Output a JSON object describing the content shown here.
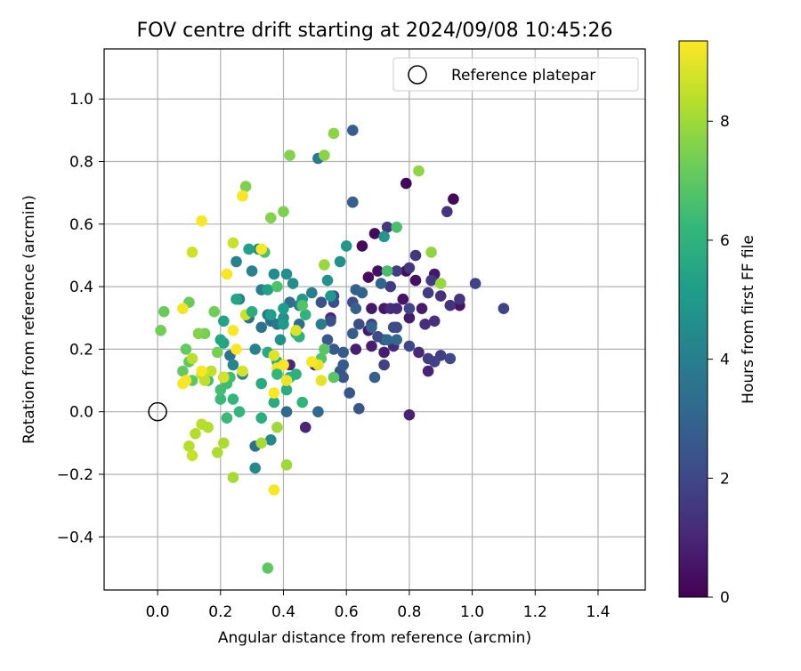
{
  "chart_data": {
    "type": "scatter",
    "title": "FOV centre drift starting at 2024/09/08 10:45:26",
    "xlabel": "Angular distance from reference (arcmin)",
    "ylabel": "Rotation from reference (arcmin)",
    "xlim": [
      -0.17,
      1.55
    ],
    "ylim": [
      -0.57,
      1.16
    ],
    "xticks": [
      "0.0",
      "0.2",
      "0.4",
      "0.6",
      "0.8",
      "1.0",
      "1.2",
      "1.4"
    ],
    "yticks": [
      "−0.4",
      "−0.2",
      "0.0",
      "0.2",
      "0.4",
      "0.6",
      "0.8",
      "1.0"
    ],
    "grid": true,
    "legend": {
      "location": "upper right",
      "label": "Reference platepar"
    },
    "reference_point": {
      "x": 0.0,
      "y": 0.0
    },
    "colorbar": {
      "label": "Hours from first FF file",
      "min": 0,
      "max": 9.35,
      "ticks": [
        "0",
        "2",
        "4",
        "6",
        "8"
      ],
      "colormap": "viridis",
      "stops": [
        "#440154",
        "#482878",
        "#3e4a89",
        "#31688e",
        "#26828e",
        "#1f9e89",
        "#35b779",
        "#6dcd59",
        "#b4de2c",
        "#fde725"
      ]
    },
    "series": [
      {
        "points": [
          [
            0.62,
            0.67,
            0.1
          ],
          [
            0.79,
            0.73,
            0.1
          ],
          [
            0.94,
            0.68,
            0.2
          ],
          [
            0.69,
            0.57,
            0.2
          ],
          [
            0.65,
            0.53,
            0.3
          ],
          [
            0.79,
            0.45,
            0.3
          ],
          [
            0.67,
            0.43,
            0.3
          ],
          [
            0.7,
            0.45,
            0.4
          ],
          [
            0.82,
            0.42,
            0.4
          ],
          [
            0.78,
            0.36,
            0.5
          ],
          [
            0.96,
            0.34,
            0.5
          ],
          [
            0.68,
            0.33,
            0.6
          ],
          [
            0.72,
            0.33,
            0.6
          ],
          [
            0.88,
            0.44,
            0.6
          ],
          [
            0.8,
            0.3,
            0.7
          ],
          [
            0.84,
            0.33,
            0.7
          ],
          [
            0.67,
            0.26,
            0.7
          ],
          [
            0.72,
            0.19,
            0.8
          ],
          [
            0.68,
            0.21,
            0.8
          ],
          [
            0.63,
            0.2,
            0.8
          ],
          [
            0.86,
            0.13,
            0.9
          ],
          [
            0.8,
            -0.01,
            0.9
          ],
          [
            0.47,
            -0.05,
            1.0
          ],
          [
            0.42,
            0.15,
            1.0
          ],
          [
            0.5,
            0.15,
            1.0
          ],
          [
            0.55,
            0.3,
            1.1
          ],
          [
            0.75,
            0.21,
            1.1
          ],
          [
            0.83,
            0.19,
            1.1
          ],
          [
            0.74,
            0.33,
            1.2
          ],
          [
            0.76,
            0.33,
            1.2
          ],
          [
            0.85,
            0.28,
            1.2
          ],
          [
            0.88,
            0.29,
            1.3
          ],
          [
            0.9,
            0.37,
            1.3
          ],
          [
            0.93,
            0.34,
            1.3
          ],
          [
            0.96,
            0.36,
            1.4
          ],
          [
            0.92,
            0.64,
            1.4
          ],
          [
            0.73,
            0.59,
            1.5
          ],
          [
            0.8,
            0.46,
            1.5
          ],
          [
            0.82,
            0.5,
            1.5
          ],
          [
            0.74,
            0.4,
            1.6
          ],
          [
            0.86,
            0.38,
            1.6
          ],
          [
            0.87,
            0.42,
            1.6
          ],
          [
            0.76,
            0.45,
            1.7
          ],
          [
            0.86,
            0.17,
            1.7
          ],
          [
            0.9,
            0.18,
            1.7
          ],
          [
            0.68,
            0.28,
            1.8
          ],
          [
            0.72,
            0.15,
            1.8
          ],
          [
            0.88,
            0.16,
            1.8
          ],
          [
            1.01,
            0.41,
            1.9
          ],
          [
            1.1,
            0.33,
            1.9
          ],
          [
            0.8,
            0.33,
            2.0
          ],
          [
            0.8,
            0.21,
            2.0
          ],
          [
            0.93,
            0.17,
            2.0
          ],
          [
            0.76,
            0.27,
            2.1
          ],
          [
            0.75,
            0.27,
            2.1
          ],
          [
            0.7,
            0.24,
            2.1
          ],
          [
            0.72,
            0.23,
            2.2
          ],
          [
            0.64,
            0.28,
            2.2
          ],
          [
            0.62,
            0.35,
            2.2
          ],
          [
            0.56,
            0.37,
            2.3
          ],
          [
            0.56,
            0.35,
            2.3
          ],
          [
            0.55,
            0.29,
            2.3
          ],
          [
            0.52,
            0.35,
            2.4
          ],
          [
            0.45,
            0.24,
            2.4
          ],
          [
            0.58,
            0.13,
            2.4
          ],
          [
            0.59,
            0.11,
            2.5
          ],
          [
            0.61,
            0.06,
            2.5
          ],
          [
            0.64,
            0.01,
            2.5
          ],
          [
            0.56,
            0.2,
            2.6
          ],
          [
            0.54,
            0.23,
            2.6
          ],
          [
            0.62,
            0.25,
            2.7
          ],
          [
            0.59,
            0.19,
            2.7
          ],
          [
            0.59,
            0.15,
            2.7
          ],
          [
            0.69,
            0.11,
            2.8
          ],
          [
            0.62,
            0.9,
            2.8
          ],
          [
            0.62,
            0.67,
            2.9
          ],
          [
            0.63,
            0.33,
            2.9
          ],
          [
            0.63,
            0.39,
            2.9
          ],
          [
            0.65,
            0.38,
            3.0
          ],
          [
            0.71,
            0.41,
            3.0
          ],
          [
            0.68,
            0.27,
            3.0
          ],
          [
            0.73,
            0.23,
            3.1
          ],
          [
            0.76,
            0.23,
            3.1
          ],
          [
            0.41,
            0.0,
            3.2
          ],
          [
            0.51,
            0.0,
            3.2
          ],
          [
            0.45,
            0.28,
            3.3
          ],
          [
            0.36,
            0.29,
            3.3
          ],
          [
            0.42,
            0.35,
            3.4
          ],
          [
            0.31,
            -0.11,
            3.4
          ],
          [
            0.23,
            0.18,
            3.5
          ],
          [
            0.21,
            0.11,
            3.5
          ],
          [
            0.29,
            0.3,
            3.6
          ],
          [
            0.33,
            0.27,
            3.6
          ],
          [
            0.35,
            0.31,
            3.7
          ],
          [
            0.38,
            0.28,
            3.7
          ],
          [
            0.51,
            0.81,
            3.8
          ],
          [
            0.52,
            0.28,
            3.9
          ],
          [
            0.45,
            0.34,
            3.9
          ],
          [
            0.49,
            0.38,
            4.0
          ],
          [
            0.33,
            0.39,
            4.0
          ],
          [
            0.31,
            0.2,
            4.1
          ],
          [
            0.3,
            0.45,
            4.1
          ],
          [
            0.25,
            0.48,
            4.2
          ],
          [
            0.26,
            0.36,
            4.2
          ],
          [
            0.24,
            0.15,
            4.3
          ],
          [
            0.27,
            0.12,
            4.3
          ],
          [
            0.31,
            -0.18,
            4.4
          ],
          [
            0.36,
            -0.09,
            4.4
          ],
          [
            0.32,
            0.52,
            4.5
          ],
          [
            0.37,
            0.44,
            4.5
          ],
          [
            0.41,
            0.44,
            4.6
          ],
          [
            0.43,
            0.41,
            4.6
          ],
          [
            0.4,
            0.3,
            4.7
          ],
          [
            0.39,
            0.23,
            4.7
          ],
          [
            0.54,
            0.42,
            4.8
          ],
          [
            0.58,
            0.48,
            4.8
          ],
          [
            0.72,
            0.56,
            4.9
          ],
          [
            0.6,
            0.53,
            4.9
          ],
          [
            0.55,
            0.37,
            5.0
          ],
          [
            0.46,
            0.36,
            5.0
          ],
          [
            0.4,
            0.28,
            5.1
          ],
          [
            0.4,
            0.33,
            5.2
          ],
          [
            0.36,
            0.31,
            5.2
          ],
          [
            0.35,
            0.39,
            5.3
          ],
          [
            0.29,
            0.52,
            5.3
          ],
          [
            0.21,
            0.22,
            5.4
          ],
          [
            0.21,
            0.29,
            5.4
          ],
          [
            0.2,
            0.23,
            5.5
          ],
          [
            0.25,
            0.36,
            5.5
          ],
          [
            0.35,
            0.19,
            5.6
          ],
          [
            0.38,
            0.16,
            5.6
          ],
          [
            0.33,
            0.09,
            5.7
          ],
          [
            0.37,
            0.03,
            5.7
          ],
          [
            0.33,
            -0.02,
            5.8
          ],
          [
            0.41,
            0.07,
            5.8
          ],
          [
            0.42,
            0.11,
            5.9
          ],
          [
            0.44,
            0.12,
            5.9
          ],
          [
            0.45,
            0.24,
            6.0
          ],
          [
            0.47,
            0.31,
            6.0
          ],
          [
            0.44,
            0.25,
            6.1
          ],
          [
            0.46,
            0.03,
            6.1
          ],
          [
            0.24,
            0.04,
            6.2
          ],
          [
            0.26,
            0.0,
            6.2
          ],
          [
            0.22,
            -0.02,
            6.3
          ],
          [
            0.2,
            0.04,
            6.3
          ],
          [
            0.16,
            0.1,
            6.4
          ],
          [
            0.22,
            0.09,
            6.4
          ],
          [
            0.23,
            0.11,
            6.5
          ],
          [
            0.2,
            0.07,
            6.5
          ],
          [
            0.73,
            0.45,
            6.6
          ],
          [
            0.76,
            0.59,
            6.6
          ],
          [
            0.34,
            0.51,
            6.7
          ],
          [
            0.38,
            0.4,
            6.7
          ],
          [
            0.46,
            0.34,
            6.8
          ],
          [
            0.52,
            0.17,
            6.8
          ],
          [
            0.56,
            0.11,
            6.9
          ],
          [
            0.53,
            0.2,
            6.9
          ],
          [
            0.11,
            0.1,
            7.0
          ],
          [
            0.1,
            0.16,
            7.0
          ],
          [
            0.09,
            0.2,
            7.1
          ],
          [
            0.08,
            0.13,
            7.1
          ],
          [
            0.1,
            0.35,
            7.2
          ],
          [
            0.02,
            0.32,
            7.2
          ],
          [
            0.01,
            0.26,
            7.3
          ],
          [
            0.18,
            0.32,
            7.3
          ],
          [
            0.15,
            0.25,
            7.4
          ],
          [
            0.19,
            0.19,
            7.4
          ],
          [
            0.28,
            0.72,
            7.5
          ],
          [
            0.4,
            0.64,
            7.5
          ],
          [
            0.36,
            0.62,
            7.6
          ],
          [
            0.42,
            0.82,
            7.6
          ],
          [
            0.56,
            0.89,
            7.7
          ],
          [
            0.53,
            0.82,
            7.7
          ],
          [
            0.83,
            0.77,
            7.8
          ],
          [
            0.87,
            0.51,
            7.8
          ],
          [
            0.9,
            0.41,
            7.9
          ],
          [
            0.53,
            0.47,
            7.9
          ],
          [
            0.41,
            -0.17,
            8.0
          ],
          [
            0.38,
            -0.05,
            8.0
          ],
          [
            0.33,
            -0.1,
            8.1
          ],
          [
            0.24,
            -0.21,
            8.1
          ],
          [
            0.21,
            -0.1,
            8.2
          ],
          [
            0.19,
            -0.13,
            8.2
          ],
          [
            0.12,
            -0.07,
            8.3
          ],
          [
            0.1,
            -0.11,
            8.3
          ],
          [
            0.11,
            0.17,
            8.4
          ],
          [
            0.14,
            0.12,
            8.4
          ],
          [
            0.15,
            0.1,
            8.5
          ],
          [
            0.17,
            0.13,
            8.5
          ],
          [
            0.28,
            0.31,
            8.6
          ],
          [
            0.24,
            0.54,
            8.6
          ],
          [
            0.27,
            0.69,
            8.7
          ],
          [
            0.11,
            0.51,
            8.7
          ],
          [
            0.21,
            0.11,
            8.8
          ],
          [
            0.27,
            0.13,
            8.8
          ],
          [
            0.37,
            0.18,
            8.9
          ],
          [
            0.44,
            0.26,
            8.9
          ],
          [
            0.52,
            0.1,
            9.0
          ],
          [
            0.51,
            0.15,
            9.0
          ],
          [
            0.38,
            0.14,
            9.1
          ],
          [
            0.41,
            0.1,
            9.1
          ],
          [
            0.08,
            0.33,
            9.2
          ],
          [
            0.09,
            0.1,
            9.2
          ],
          [
            0.14,
            0.61,
            9.3
          ],
          [
            0.27,
            0.69,
            9.3
          ],
          [
            0.24,
            0.26,
            9.3
          ],
          [
            0.33,
            0.52,
            9.3
          ],
          [
            0.22,
            0.44,
            9.3
          ],
          [
            0.25,
            0.2,
            9.3
          ],
          [
            0.37,
            0.06,
            9.3
          ],
          [
            0.37,
            -0.25,
            9.3
          ],
          [
            0.14,
            0.13,
            9.3
          ],
          [
            0.08,
            0.09,
            9.3
          ],
          [
            0.4,
            0.15,
            9.3
          ],
          [
            0.49,
            0.16,
            9.3
          ],
          [
            0.35,
            -0.5,
            7.0
          ],
          [
            0.3,
            0.32,
            5.8
          ],
          [
            0.38,
            0.12,
            6.2
          ],
          [
            0.14,
            -0.04,
            8.4
          ],
          [
            0.16,
            -0.05,
            8.3
          ],
          [
            0.11,
            -0.14,
            8.6
          ],
          [
            0.13,
            0.25,
            7.6
          ]
        ]
      }
    ]
  }
}
